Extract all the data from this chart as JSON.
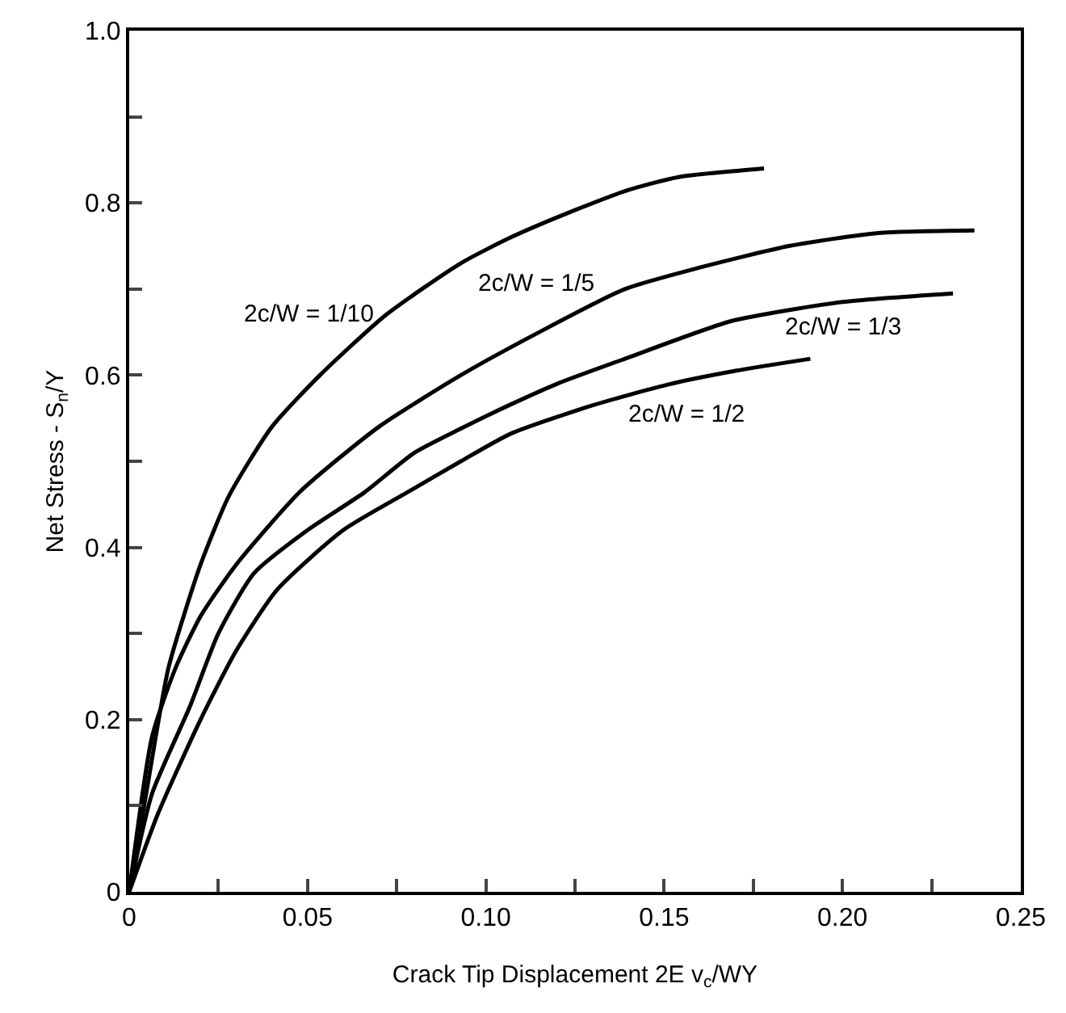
{
  "chart_data": {
    "type": "line",
    "xlabel": "Crack Tip Displacement 2E v$_{c}$/WY",
    "ylabel": "Net Stress - S$_{n}$/Y",
    "xlim": [
      0,
      0.25
    ],
    "xticks": [
      0,
      {
        "value": 0.025,
        "label": null
      },
      0.05,
      {
        "value": 0.075,
        "label": null
      },
      {
        "value": 0.1,
        "label": "0.10"
      },
      {
        "value": 0.125,
        "label": null
      },
      0.15,
      {
        "value": 0.175,
        "label": null
      },
      {
        "value": 0.2,
        "label": "0.20"
      },
      {
        "value": 0.225,
        "label": null
      },
      0.25
    ],
    "ylim": [
      0,
      1.0
    ],
    "yticks": [
      0,
      {
        "value": 0.1,
        "label": null
      },
      0.2,
      {
        "value": 0.3,
        "label": null
      },
      0.4,
      {
        "value": 0.5,
        "label": null
      },
      0.6,
      {
        "value": 0.7,
        "label": null
      },
      0.8,
      {
        "value": 0.9,
        "label": null
      },
      {
        "value": 1,
        "label": "1.0"
      }
    ],
    "grid": false,
    "legend": false,
    "marker": "none",
    "line_style": "solid",
    "series": [
      {
        "name": "2c/W = 1/10",
        "color": "#000000",
        "x": [
          0,
          0.005,
          0.011,
          0.02,
          0.028,
          0.04,
          0.0535,
          0.072,
          0.093,
          0.107,
          0.124,
          0.14,
          0.154,
          0.178
        ],
        "values": [
          0,
          0.12,
          0.26,
          0.38,
          0.46,
          0.54,
          0.6,
          0.67,
          0.73,
          0.76,
          0.79,
          0.815,
          0.83,
          0.84
        ]
      },
      {
        "name": "2c/W = 1/5",
        "color": "#000000",
        "x": [
          0,
          0.0064,
          0.013,
          0.02,
          0.03,
          0.048,
          0.07,
          0.093,
          0.115,
          0.139,
          0.16,
          0.185,
          0.21,
          0.237
        ],
        "values": [
          0,
          0.18,
          0.26,
          0.32,
          0.38,
          0.465,
          0.54,
          0.6,
          0.65,
          0.7,
          0.725,
          0.75,
          0.765,
          0.768
        ]
      },
      {
        "name": "2c/W = 1/3",
        "color": "#000000",
        "x": [
          0,
          0.0064,
          0.017,
          0.025,
          0.035,
          0.05,
          0.066,
          0.08,
          0.093,
          0.107,
          0.12,
          0.139,
          0.169,
          0.2,
          0.231
        ],
        "values": [
          0,
          0.114,
          0.215,
          0.3,
          0.37,
          0.42,
          0.464,
          0.51,
          0.538,
          0.566,
          0.59,
          0.619,
          0.663,
          0.685,
          0.695
        ]
      },
      {
        "name": "2c/W = 1/2",
        "color": "#000000",
        "x": [
          0,
          0.008,
          0.02,
          0.03,
          0.0415,
          0.06,
          0.078,
          0.093,
          0.107,
          0.13,
          0.151,
          0.17,
          0.191
        ],
        "values": [
          0,
          0.09,
          0.2,
          0.28,
          0.351,
          0.42,
          0.464,
          0.5,
          0.532,
          0.565,
          0.589,
          0.605,
          0.619
        ]
      }
    ]
  }
}
